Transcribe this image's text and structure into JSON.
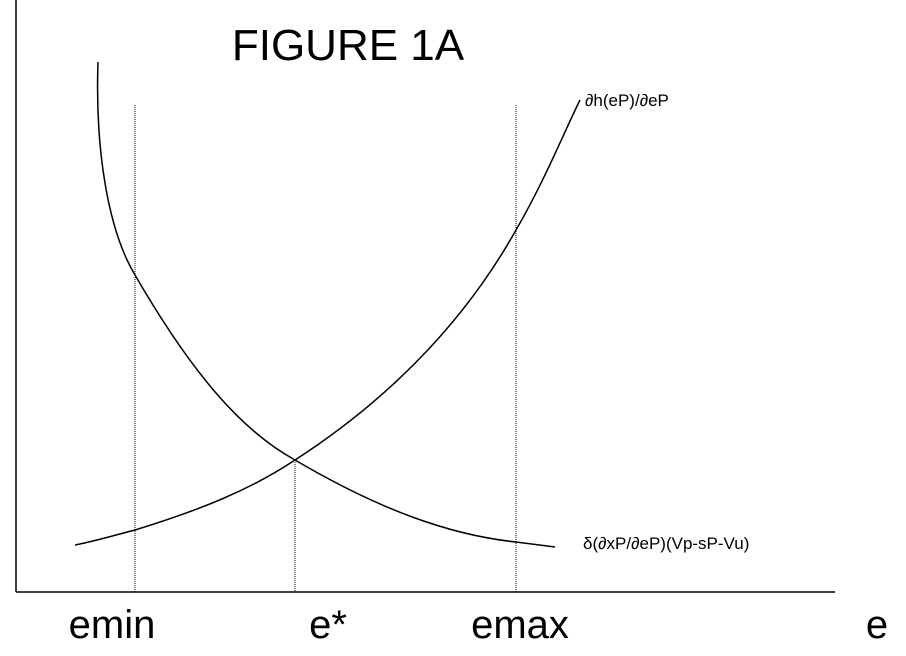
{
  "title": "FIGURE 1A",
  "curves": [
    {
      "label": "∂h(eP)/∂eP"
    },
    {
      "label": "δ(∂xP/∂eP)(Vp-sP-Vu)"
    }
  ],
  "x_labels": [
    "emin",
    "e*",
    "emax"
  ],
  "axis_label": "e"
}
